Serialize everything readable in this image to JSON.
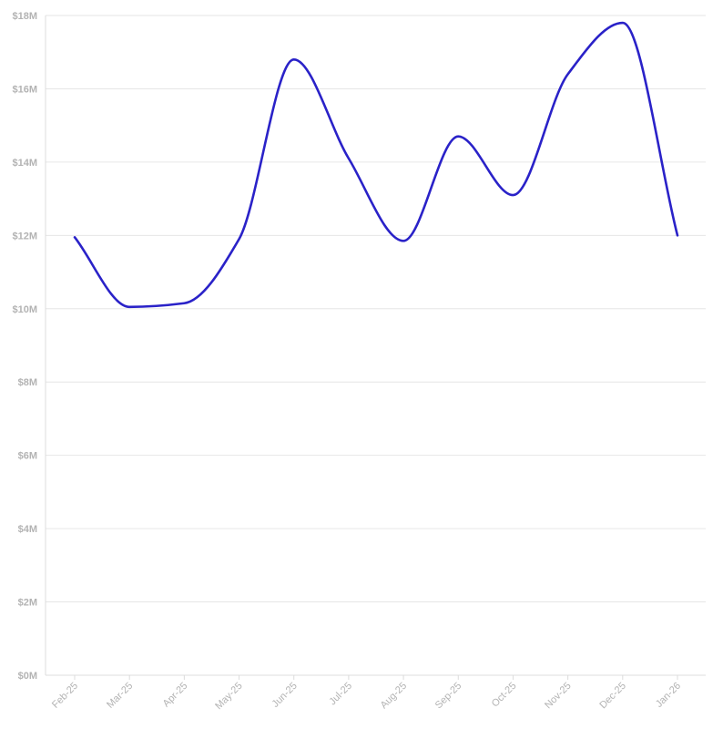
{
  "chart_data": {
    "type": "line",
    "categories": [
      "Feb-25",
      "Mar-25",
      "Apr-25",
      "May-25",
      "Jun-25",
      "Jul-25",
      "Aug-25",
      "Sep-25",
      "Oct-25",
      "Nov-25",
      "Dec-25",
      "Jan-26"
    ],
    "series": [
      {
        "values": [
          11.95,
          10.05,
          10.15,
          11.9,
          16.8,
          14.1,
          11.85,
          14.7,
          13.1,
          16.4,
          17.8,
          12.0
        ]
      }
    ],
    "ylim": [
      0,
      18
    ],
    "yticks": [
      0,
      2,
      4,
      6,
      8,
      10,
      12,
      14,
      16,
      18
    ],
    "ytick_labels": [
      "$0M",
      "$2M",
      "$4M",
      "$6M",
      "$8M",
      "$10M",
      "$12M",
      "$14M",
      "$16M",
      "$18M"
    ],
    "grid": true,
    "legend": "none",
    "line_color": "#2a22c8"
  }
}
